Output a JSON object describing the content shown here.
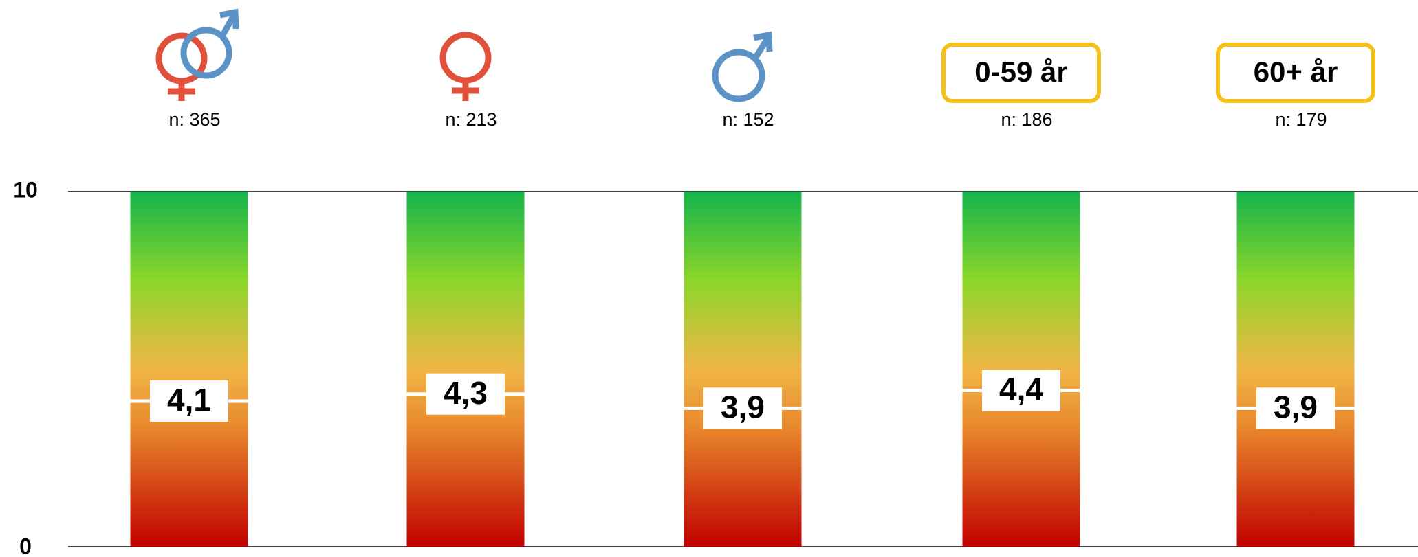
{
  "chart_data": {
    "type": "bar",
    "categories": [
      null,
      null,
      null,
      "0-59 år",
      "60+ år"
    ],
    "n_labels": [
      "n: 365",
      "n: 213",
      "n: 152",
      "n: 186",
      "n: 179"
    ],
    "values": [
      4.1,
      4.3,
      3.9,
      4.4,
      3.9
    ],
    "value_labels": [
      "4,1",
      "4,3",
      "3,9",
      "4,4",
      "3,9"
    ],
    "ylim": [
      0,
      10
    ],
    "yticks": [
      0,
      10
    ],
    "grid": true,
    "gradient": [
      "#c00000",
      "#e8862c",
      "#f0b646",
      "#8cd62a",
      "#14b44c"
    ],
    "category_box_color": "#f5c116"
  }
}
